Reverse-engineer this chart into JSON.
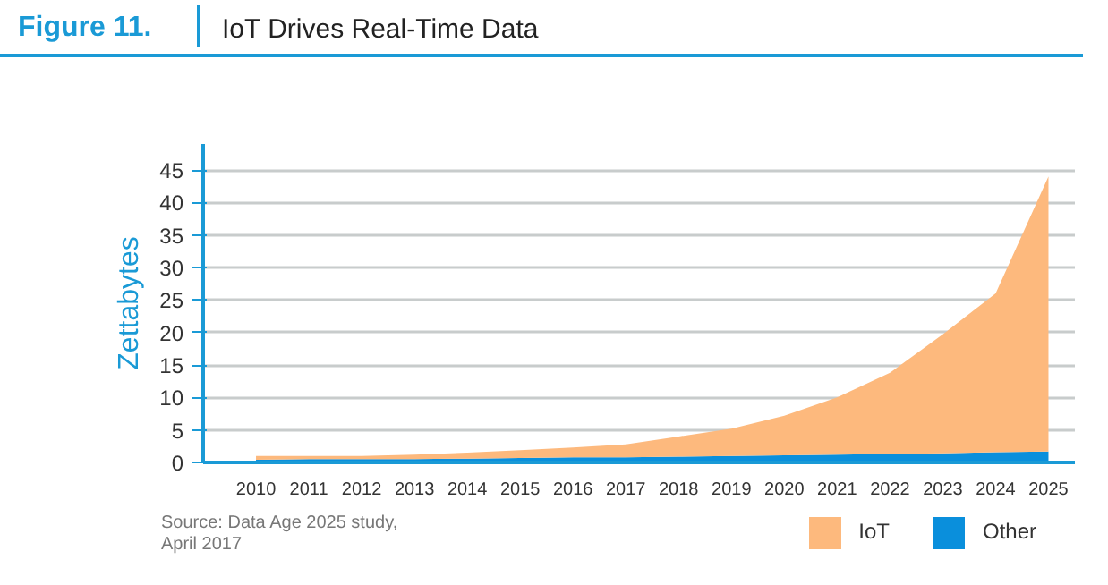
{
  "chart_data": {
    "type": "area",
    "stacked": true,
    "title": "Figure 11.",
    "subtitle": "IoT Drives Real-Time Data",
    "ylabel": "Zettabytes",
    "x": [
      2010,
      2011,
      2012,
      2013,
      2014,
      2015,
      2016,
      2017,
      2018,
      2019,
      2020,
      2021,
      2022,
      2023,
      2024,
      2025
    ],
    "xlim": [
      2009.0,
      2025.5
    ],
    "xticks": [
      2010,
      2011,
      2012,
      2013,
      2014,
      2015,
      2016,
      2017,
      2018,
      2019,
      2020,
      2021,
      2022,
      2023,
      2024,
      2025
    ],
    "ylim": [
      0,
      49
    ],
    "yticks": [
      0,
      5,
      10,
      15,
      20,
      25,
      30,
      35,
      40,
      45
    ],
    "grid": "y",
    "legend": "bottom right",
    "series": [
      {
        "name": "Other",
        "color": "#0a8fdc",
        "values": [
          0.4,
          0.5,
          0.5,
          0.5,
          0.6,
          0.7,
          0.8,
          0.8,
          0.9,
          1.0,
          1.1,
          1.2,
          1.3,
          1.4,
          1.6,
          1.7
        ]
      },
      {
        "name": "IoT",
        "color": "#fdb97d",
        "values": [
          0.6,
          0.5,
          0.5,
          0.7,
          0.9,
          1.2,
          1.5,
          2.0,
          3.1,
          4.2,
          6.1,
          8.8,
          12.5,
          18.3,
          24.4,
          42.3
        ]
      }
    ],
    "annotations": [
      "Source: Data Age 2025 study,\nApril 2017"
    ]
  }
}
